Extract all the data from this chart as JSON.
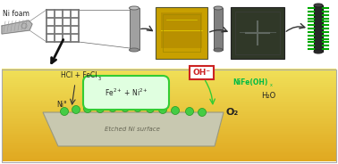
{
  "bg": "#ffffff",
  "sol_top": "#f0e058",
  "sol_bot": "#e0a820",
  "ni_surface_fill": "#c8c8b0",
  "ni_surface_edge": "#999980",
  "green": "#33cc33",
  "green_light": "#ddffdd",
  "foam_gray": "#b8b8b8",
  "dark_gray": "#555555",
  "mid_gray": "#888888",
  "cyl_color": "#909090",
  "oh_red": "#cc2222",
  "nifeoh_green": "#00bb44",
  "label_ni_foam": "Ni foam",
  "label_hcl_main": "HCl + FeCl",
  "label_hcl_sub": "3",
  "label_ni0": "Ni°",
  "label_fe_ni": "Fe²⁺ + Ni²⁺",
  "label_nifeoh_main": "NiFe(OH)",
  "label_nifeoh_sub": "x",
  "label_oh": "OH⁻",
  "label_o2": "O₂",
  "label_h2o": "H₂O",
  "label_etched": "Etched Ni surface",
  "fig_w": 3.78,
  "fig_h": 1.84,
  "dpi": 100
}
